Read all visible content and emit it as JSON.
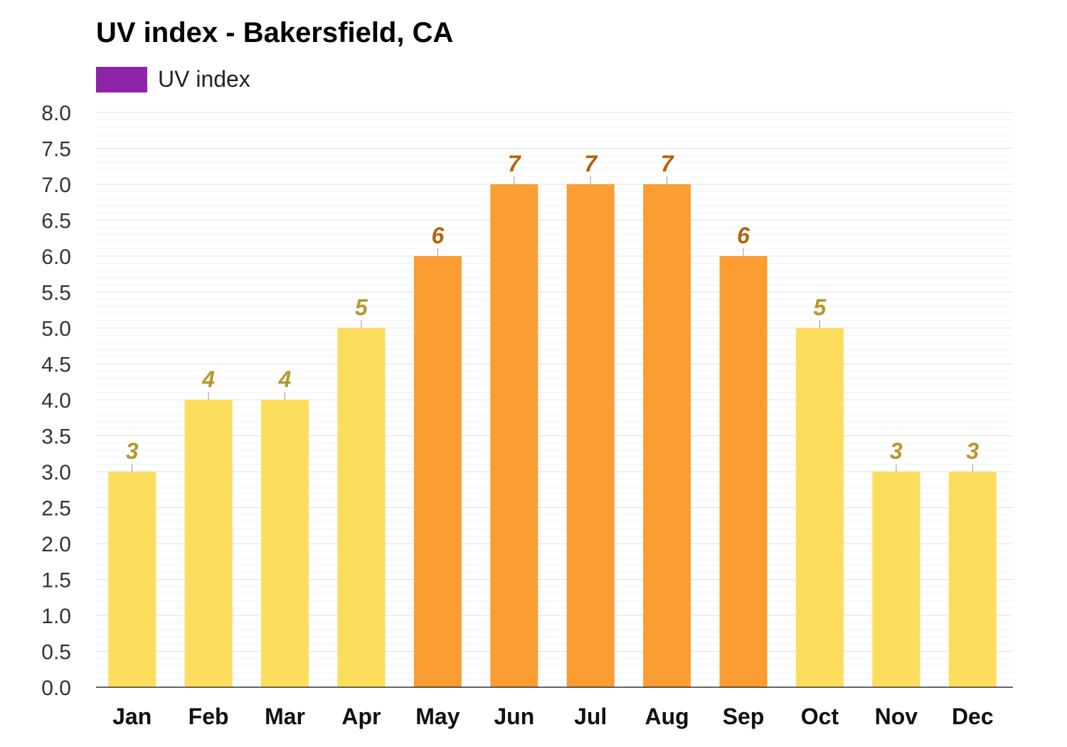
{
  "chart_data": {
    "type": "bar",
    "title": "UV index - Bakersfield, CA",
    "legend": [
      {
        "name": "UV index",
        "color": "#8E24AA"
      }
    ],
    "legend_placement": "top-left",
    "categories": [
      "Jan",
      "Feb",
      "Mar",
      "Apr",
      "May",
      "Jun",
      "Jul",
      "Aug",
      "Sep",
      "Oct",
      "Nov",
      "Dec"
    ],
    "values": [
      3,
      4,
      4,
      5,
      6,
      7,
      7,
      7,
      6,
      5,
      3,
      3
    ],
    "ylim": [
      0,
      8
    ],
    "ytick_step": 0.5,
    "ytick_labels": [
      "0.0",
      "0.5",
      "1.0",
      "1.5",
      "2.0",
      "2.5",
      "3.0",
      "3.5",
      "4.0",
      "4.5",
      "5.0",
      "5.5",
      "6.0",
      "6.5",
      "7.0",
      "7.5",
      "8.0"
    ],
    "grid": true,
    "colors": {
      "moderate_bar": "#FDDD5C",
      "high_bar": "#FB9D32",
      "moderate_label": "#B8962A",
      "high_label": "#B5610E",
      "high_threshold": 6
    }
  }
}
